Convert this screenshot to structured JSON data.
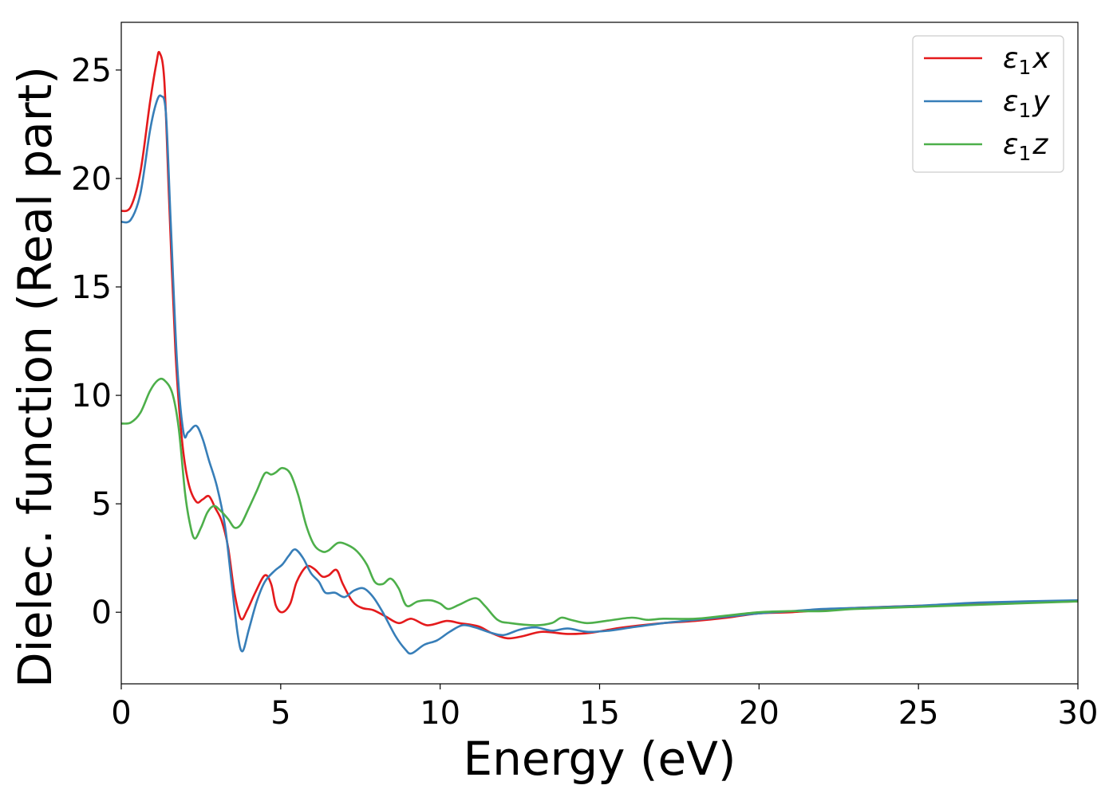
{
  "chart_data": {
    "type": "line",
    "xlabel": "Energy (eV)",
    "ylabel": "Dielec. function (Real part)",
    "xlim": [
      0,
      30
    ],
    "ylim": [
      -3.3,
      27.2
    ],
    "xticks": [
      0,
      5,
      10,
      15,
      20,
      25,
      30
    ],
    "yticks": [
      0,
      5,
      10,
      15,
      20,
      25
    ],
    "xtick_labels": [
      "0",
      "5",
      "10",
      "15",
      "20",
      "25",
      "30"
    ],
    "ytick_labels": [
      "0",
      "5",
      "10",
      "15",
      "20",
      "25"
    ],
    "grid": false,
    "legend_position": "top-right",
    "series": [
      {
        "name": "ε1x",
        "base": "ε",
        "sub": "1",
        "suffix": "x",
        "color": "#e41a1c",
        "points": [
          [
            0,
            18.5
          ],
          [
            0.3,
            18.7
          ],
          [
            0.6,
            20.3
          ],
          [
            0.9,
            23.5
          ],
          [
            1.1,
            25.3
          ],
          [
            1.2,
            25.8
          ],
          [
            1.35,
            24.5
          ],
          [
            1.5,
            19
          ],
          [
            1.7,
            12
          ],
          [
            1.9,
            8
          ],
          [
            2.1,
            6
          ],
          [
            2.35,
            5.1
          ],
          [
            2.55,
            5.2
          ],
          [
            2.75,
            5.35
          ],
          [
            2.95,
            4.8
          ],
          [
            3.15,
            4.2
          ],
          [
            3.35,
            3
          ],
          [
            3.55,
            0.9
          ],
          [
            3.75,
            -0.3
          ],
          [
            3.95,
            0.1
          ],
          [
            4.2,
            0.9
          ],
          [
            4.5,
            1.7
          ],
          [
            4.7,
            1.3
          ],
          [
            4.85,
            0.3
          ],
          [
            5.05,
            0
          ],
          [
            5.3,
            0.4
          ],
          [
            5.5,
            1.4
          ],
          [
            5.8,
            2.1
          ],
          [
            6.05,
            2
          ],
          [
            6.3,
            1.65
          ],
          [
            6.5,
            1.7
          ],
          [
            6.75,
            1.95
          ],
          [
            6.95,
            1.3
          ],
          [
            7.25,
            0.5
          ],
          [
            7.55,
            0.2
          ],
          [
            7.9,
            0.1
          ],
          [
            8.3,
            -0.2
          ],
          [
            8.7,
            -0.5
          ],
          [
            9.1,
            -0.3
          ],
          [
            9.6,
            -0.6
          ],
          [
            10.2,
            -0.4
          ],
          [
            10.6,
            -0.5
          ],
          [
            11.2,
            -0.65
          ],
          [
            11.6,
            -0.95
          ],
          [
            12.1,
            -1.2
          ],
          [
            12.6,
            -1.1
          ],
          [
            13.2,
            -0.9
          ],
          [
            14,
            -1
          ],
          [
            14.7,
            -0.95
          ],
          [
            15.5,
            -0.75
          ],
          [
            16,
            -0.65
          ],
          [
            17,
            -0.5
          ],
          [
            18,
            -0.4
          ],
          [
            19,
            -0.25
          ],
          [
            20,
            -0.05
          ],
          [
            21,
            0
          ],
          [
            22,
            0.1
          ],
          [
            23,
            0.2
          ],
          [
            25,
            0.3
          ],
          [
            27,
            0.4
          ],
          [
            30,
            0.5
          ]
        ]
      },
      {
        "name": "ε1y",
        "base": "ε",
        "sub": "1",
        "suffix": "y",
        "color": "#377eb8",
        "points": [
          [
            0,
            18
          ],
          [
            0.3,
            18.1
          ],
          [
            0.6,
            19.3
          ],
          [
            0.9,
            22.2
          ],
          [
            1.1,
            23.5
          ],
          [
            1.25,
            23.8
          ],
          [
            1.4,
            23
          ],
          [
            1.55,
            18
          ],
          [
            1.75,
            11.5
          ],
          [
            1.95,
            8.3
          ],
          [
            2.1,
            8.3
          ],
          [
            2.35,
            8.6
          ],
          [
            2.55,
            8
          ],
          [
            2.75,
            7
          ],
          [
            3,
            5.8
          ],
          [
            3.25,
            4
          ],
          [
            3.45,
            1.5
          ],
          [
            3.65,
            -1
          ],
          [
            3.8,
            -1.8
          ],
          [
            4,
            -0.8
          ],
          [
            4.25,
            0.5
          ],
          [
            4.5,
            1.4
          ],
          [
            4.8,
            1.9
          ],
          [
            5.05,
            2.2
          ],
          [
            5.25,
            2.6
          ],
          [
            5.45,
            2.9
          ],
          [
            5.7,
            2.5
          ],
          [
            5.95,
            1.8
          ],
          [
            6.2,
            1.4
          ],
          [
            6.4,
            0.9
          ],
          [
            6.7,
            0.9
          ],
          [
            7,
            0.7
          ],
          [
            7.3,
            1
          ],
          [
            7.6,
            1.1
          ],
          [
            7.9,
            0.7
          ],
          [
            8.2,
            0
          ],
          [
            8.6,
            -1.1
          ],
          [
            8.9,
            -1.7
          ],
          [
            9.1,
            -1.9
          ],
          [
            9.5,
            -1.5
          ],
          [
            9.9,
            -1.3
          ],
          [
            10.3,
            -0.9
          ],
          [
            10.7,
            -0.6
          ],
          [
            11.1,
            -0.7
          ],
          [
            11.6,
            -0.95
          ],
          [
            12,
            -1.05
          ],
          [
            12.5,
            -0.8
          ],
          [
            13,
            -0.7
          ],
          [
            13.5,
            -0.85
          ],
          [
            14,
            -0.75
          ],
          [
            14.6,
            -0.9
          ],
          [
            15.3,
            -0.85
          ],
          [
            16,
            -0.7
          ],
          [
            17,
            -0.5
          ],
          [
            18,
            -0.35
          ],
          [
            19,
            -0.2
          ],
          [
            20,
            -0.05
          ],
          [
            21,
            0.05
          ],
          [
            22,
            0.15
          ],
          [
            23,
            0.2
          ],
          [
            25,
            0.3
          ],
          [
            27,
            0.45
          ],
          [
            30,
            0.55
          ]
        ]
      },
      {
        "name": "ε1z",
        "base": "ε",
        "sub": "1",
        "suffix": "z",
        "color": "#4daf4a",
        "points": [
          [
            0,
            8.7
          ],
          [
            0.3,
            8.75
          ],
          [
            0.6,
            9.2
          ],
          [
            0.9,
            10.2
          ],
          [
            1.15,
            10.7
          ],
          [
            1.35,
            10.7
          ],
          [
            1.6,
            10.1
          ],
          [
            1.8,
            8.5
          ],
          [
            2,
            5.5
          ],
          [
            2.15,
            4.1
          ],
          [
            2.3,
            3.4
          ],
          [
            2.5,
            3.9
          ],
          [
            2.7,
            4.6
          ],
          [
            2.9,
            4.9
          ],
          [
            3.1,
            4.7
          ],
          [
            3.35,
            4.3
          ],
          [
            3.55,
            3.9
          ],
          [
            3.75,
            4.05
          ],
          [
            4,
            4.8
          ],
          [
            4.25,
            5.6
          ],
          [
            4.5,
            6.4
          ],
          [
            4.7,
            6.35
          ],
          [
            4.85,
            6.45
          ],
          [
            5.05,
            6.65
          ],
          [
            5.3,
            6.4
          ],
          [
            5.55,
            5.4
          ],
          [
            5.8,
            4
          ],
          [
            6.05,
            3.1
          ],
          [
            6.3,
            2.8
          ],
          [
            6.5,
            2.85
          ],
          [
            6.8,
            3.2
          ],
          [
            7.1,
            3.1
          ],
          [
            7.4,
            2.8
          ],
          [
            7.7,
            2.2
          ],
          [
            7.95,
            1.4
          ],
          [
            8.2,
            1.3
          ],
          [
            8.45,
            1.55
          ],
          [
            8.7,
            1.1
          ],
          [
            8.95,
            0.3
          ],
          [
            9.3,
            0.5
          ],
          [
            9.7,
            0.55
          ],
          [
            10,
            0.4
          ],
          [
            10.25,
            0.15
          ],
          [
            10.6,
            0.35
          ],
          [
            11.1,
            0.65
          ],
          [
            11.4,
            0.3
          ],
          [
            11.8,
            -0.35
          ],
          [
            12.2,
            -0.5
          ],
          [
            13,
            -0.6
          ],
          [
            13.5,
            -0.5
          ],
          [
            13.8,
            -0.25
          ],
          [
            14.1,
            -0.35
          ],
          [
            14.6,
            -0.5
          ],
          [
            15.2,
            -0.4
          ],
          [
            16,
            -0.25
          ],
          [
            16.5,
            -0.35
          ],
          [
            17,
            -0.3
          ],
          [
            18,
            -0.3
          ],
          [
            19,
            -0.15
          ],
          [
            20,
            0
          ],
          [
            21,
            0.05
          ],
          [
            22,
            0.05
          ],
          [
            23,
            0.15
          ],
          [
            25,
            0.25
          ],
          [
            27,
            0.35
          ],
          [
            30,
            0.5
          ]
        ]
      }
    ]
  }
}
